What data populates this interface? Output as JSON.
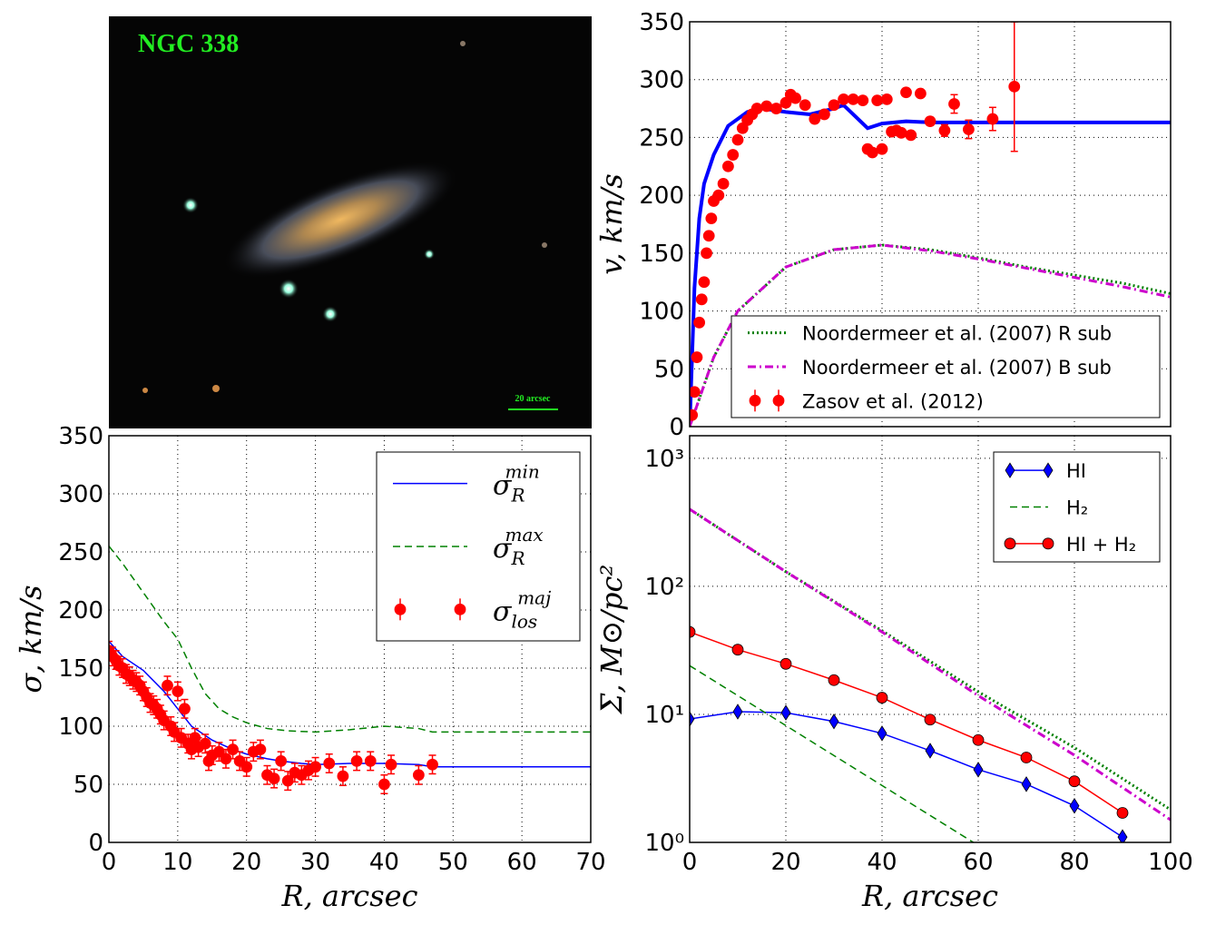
{
  "image": {
    "title": "NGC 338",
    "scale_label": "20 arcsec"
  },
  "chart_data": [
    {
      "type": "line",
      "ylabel": "v, km/s",
      "xlim": [
        0,
        100
      ],
      "ylim": [
        0,
        350
      ],
      "xticks": [
        0,
        20,
        40,
        60,
        80,
        100
      ],
      "show_xtick_labels": false,
      "yticks": [
        0,
        50,
        100,
        150,
        200,
        250,
        300,
        350
      ],
      "grid": true,
      "legend": "lower right",
      "series": [
        {
          "style": "line",
          "color": "#0000ff",
          "width": 4,
          "x": [
            0,
            0.5,
            1,
            2,
            3,
            5,
            8,
            12,
            15,
            20,
            25,
            30,
            32,
            34,
            37,
            40,
            45,
            50,
            60,
            100
          ],
          "values": [
            0,
            60,
            120,
            180,
            210,
            235,
            260,
            272,
            275,
            272,
            270,
            275,
            278,
            270,
            258,
            262,
            264,
            263,
            263,
            263
          ]
        },
        {
          "name": "Noordermeer et al. (2007) R sub",
          "style": "dotted",
          "color": "#008000",
          "width": 3,
          "x": [
            0,
            5,
            10,
            20,
            30,
            40,
            50,
            60,
            70,
            80,
            90,
            100
          ],
          "values": [
            0,
            60,
            100,
            138,
            153,
            157,
            153,
            146,
            138,
            131,
            124,
            115
          ]
        },
        {
          "name": "Noordermeer et al. (2007) B sub",
          "style": "dashdot",
          "color": "#cc00cc",
          "width": 3,
          "x": [
            0,
            5,
            10,
            20,
            30,
            40,
            50,
            60,
            70,
            80,
            90,
            100
          ],
          "values": [
            0,
            60,
            100,
            138,
            153,
            157,
            152,
            145,
            137,
            129,
            121,
            112
          ]
        },
        {
          "name": "Zasov et al. (2012)",
          "style": "errorbar",
          "marker": "circle",
          "color": "#ff0000",
          "x": [
            0.5,
            1,
            1.5,
            2,
            2.5,
            3,
            3.5,
            4,
            4.5,
            5,
            6,
            7,
            8,
            9,
            10,
            11,
            12,
            13,
            14,
            16,
            18,
            20,
            21,
            22,
            24,
            26,
            28,
            30,
            32,
            34,
            36,
            37,
            38,
            39,
            40,
            41,
            42,
            43,
            44,
            45,
            46,
            48,
            50,
            53,
            55,
            58,
            63,
            67.5
          ],
          "values": [
            10,
            30,
            60,
            90,
            110,
            125,
            150,
            165,
            180,
            195,
            200,
            210,
            225,
            235,
            248,
            258,
            265,
            270,
            275,
            277,
            275,
            280,
            287,
            284,
            278,
            266,
            270,
            278,
            283,
            283,
            282,
            240,
            237,
            282,
            240,
            283,
            255,
            256,
            254,
            289,
            252,
            288,
            264,
            256,
            279,
            257,
            266,
            294
          ],
          "errors": [
            3,
            3,
            3,
            3,
            3,
            3,
            3,
            3,
            3,
            3,
            3,
            3,
            3,
            3,
            3,
            3,
            3,
            3,
            3,
            3,
            3,
            3,
            3,
            3,
            3,
            3,
            3,
            3,
            3,
            3,
            3,
            3,
            3,
            3,
            3,
            3,
            3,
            3,
            3,
            3,
            3,
            3,
            3,
            5,
            8,
            8,
            10,
            56
          ]
        }
      ]
    },
    {
      "type": "line",
      "xlabel": "R, arcsec",
      "ylabel": "σ, km/s",
      "xlim": [
        0,
        70
      ],
      "ylim": [
        0,
        350
      ],
      "xticks": [
        0,
        10,
        20,
        30,
        40,
        50,
        60,
        70
      ],
      "show_xtick_labels": true,
      "yticks": [
        0,
        50,
        100,
        150,
        200,
        250,
        300,
        350
      ],
      "grid": true,
      "legend": "upper right",
      "series": [
        {
          "name": "σ",
          "name_sub": "R",
          "name_sup": "min",
          "style": "line",
          "color": "#0000ff",
          "width": 1.5,
          "x": [
            0,
            2,
            5,
            8,
            10,
            12,
            15,
            18,
            20,
            23,
            25,
            28,
            30,
            35,
            40,
            45,
            47,
            70
          ],
          "values": [
            173,
            160,
            148,
            130,
            115,
            100,
            88,
            80,
            76,
            72,
            70,
            68,
            67,
            68,
            68,
            67,
            65,
            65
          ]
        },
        {
          "name": "σ",
          "name_sub": "R",
          "name_sup": "max",
          "style": "dashed",
          "color": "#008000",
          "width": 1.5,
          "x": [
            0,
            2,
            5,
            8,
            10,
            12,
            14,
            16,
            18,
            20,
            23,
            26,
            30,
            35,
            40,
            45,
            47,
            70
          ],
          "values": [
            255,
            240,
            215,
            190,
            175,
            150,
            128,
            115,
            108,
            103,
            98,
            96,
            95,
            97,
            100,
            98,
            95,
            95
          ]
        },
        {
          "name": "σ",
          "name_sub": "los",
          "name_sup": "maj",
          "style": "errorbar",
          "marker": "circle",
          "color": "#ff0000",
          "x": [
            0,
            0.5,
            1,
            1.5,
            2,
            2.5,
            3,
            3.5,
            4,
            4.5,
            5,
            5.5,
            6,
            6.5,
            7,
            7.5,
            8,
            8.5,
            9,
            9.5,
            10,
            10.5,
            11,
            11.5,
            12,
            12.5,
            13,
            14,
            14.5,
            15,
            16,
            17,
            18,
            19,
            20,
            21,
            22,
            23,
            24,
            25,
            26,
            27,
            28,
            29,
            30,
            32,
            34,
            36,
            38,
            40,
            41,
            45,
            47
          ],
          "values": [
            165,
            160,
            157,
            152,
            150,
            145,
            143,
            140,
            138,
            135,
            130,
            125,
            120,
            118,
            115,
            110,
            105,
            135,
            100,
            95,
            130,
            90,
            115,
            85,
            80,
            90,
            82,
            85,
            70,
            75,
            78,
            72,
            80,
            70,
            65,
            78,
            80,
            58,
            55,
            70,
            53,
            60,
            58,
            62,
            65,
            68,
            57,
            70,
            70,
            50,
            67,
            58,
            67
          ],
          "errors": [
            8,
            8,
            8,
            8,
            8,
            8,
            8,
            8,
            8,
            8,
            8,
            8,
            8,
            8,
            8,
            8,
            8,
            8,
            8,
            8,
            8,
            8,
            8,
            8,
            8,
            8,
            8,
            8,
            8,
            8,
            8,
            8,
            8,
            8,
            8,
            8,
            8,
            8,
            8,
            8,
            8,
            8,
            8,
            8,
            8,
            8,
            8,
            8,
            8,
            8,
            8,
            8,
            8
          ]
        }
      ]
    },
    {
      "type": "line",
      "xlabel": "R, arcsec",
      "ylabel": "Σ, M⊙/pc²",
      "yscale": "log",
      "xlim": [
        0,
        100
      ],
      "ylim": [
        1,
        1500
      ],
      "xticks": [
        0,
        20,
        40,
        60,
        80,
        100
      ],
      "show_xtick_labels": true,
      "yticks": [
        {
          "value": 1,
          "label": "10⁰"
        },
        {
          "value": 10,
          "label": "10¹"
        },
        {
          "value": 100,
          "label": "10²"
        },
        {
          "value": 1000,
          "label": "10³"
        }
      ],
      "grid": true,
      "legend": "upper right",
      "series": [
        {
          "style": "dotted",
          "color": "#008000",
          "width": 3,
          "x": [
            0,
            20,
            40,
            60,
            80,
            100
          ],
          "values": [
            400,
            130,
            45,
            15,
            5.5,
            1.8
          ]
        },
        {
          "style": "dashdot",
          "color": "#cc00cc",
          "width": 3,
          "x": [
            0,
            20,
            40,
            60,
            80,
            100
          ],
          "values": [
            400,
            130,
            44,
            14,
            4.8,
            1.5
          ]
        },
        {
          "name": "HI",
          "style": "line",
          "marker": "diamond",
          "color": "#0000ff",
          "width": 1.5,
          "x": [
            0,
            10,
            20,
            30,
            40,
            50,
            60,
            70,
            80,
            90
          ],
          "values": [
            9.2,
            10.5,
            10.3,
            8.8,
            7.1,
            5.2,
            3.7,
            2.85,
            1.93,
            1.1
          ]
        },
        {
          "name": "H₂",
          "style": "dashed",
          "color": "#008000",
          "width": 1.5,
          "x": [
            0,
            59
          ],
          "values": [
            24,
            1
          ]
        },
        {
          "name": "HI + H₂",
          "style": "line",
          "marker": "circle",
          "color": "#ff0000",
          "width": 1.5,
          "x": [
            0,
            10,
            20,
            30,
            40,
            50,
            60,
            70,
            80,
            90
          ],
          "values": [
            44,
            32,
            24.8,
            18.5,
            13.5,
            9.1,
            6.3,
            4.6,
            3.0,
            1.7
          ]
        }
      ]
    }
  ]
}
